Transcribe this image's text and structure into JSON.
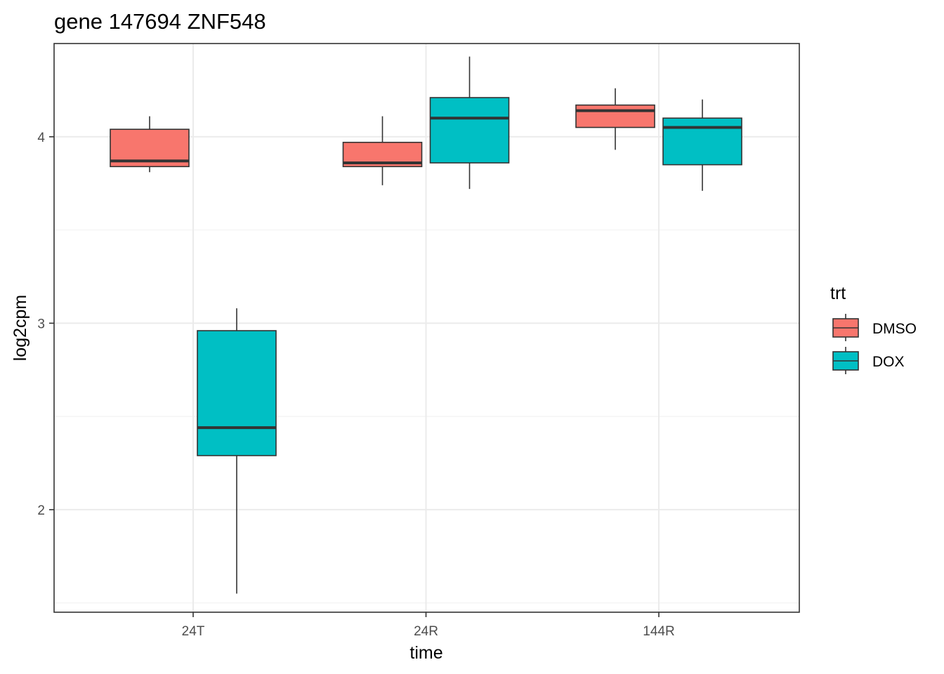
{
  "chart_data": {
    "type": "boxplot",
    "title": "gene 147694 ZNF548",
    "xlabel": "time",
    "ylabel": "log2cpm",
    "categories": [
      "24T",
      "24R",
      "144R"
    ],
    "ylim": [
      1.45,
      4.5
    ],
    "yticks": [
      2,
      3,
      4
    ],
    "grid": true,
    "legend": {
      "title": "trt",
      "position": "right",
      "entries": [
        {
          "name": "DMSO",
          "color": "#F8766D"
        },
        {
          "name": "DOX",
          "color": "#00BFC4"
        }
      ]
    },
    "series": [
      {
        "name": "DMSO",
        "color": "#F8766D",
        "boxes": [
          {
            "category": "24T",
            "min": 3.81,
            "q1": 3.84,
            "median": 3.87,
            "q3": 4.04,
            "max": 4.11
          },
          {
            "category": "24R",
            "min": 3.74,
            "q1": 3.84,
            "median": 3.86,
            "q3": 3.97,
            "max": 4.11
          },
          {
            "category": "144R",
            "min": 3.93,
            "q1": 4.05,
            "median": 4.14,
            "q3": 4.17,
            "max": 4.26
          }
        ]
      },
      {
        "name": "DOX",
        "color": "#00BFC4",
        "boxes": [
          {
            "category": "24T",
            "min": 1.55,
            "q1": 2.29,
            "median": 2.44,
            "q3": 2.96,
            "max": 3.08
          },
          {
            "category": "24R",
            "min": 3.72,
            "q1": 3.86,
            "median": 4.1,
            "q3": 4.21,
            "max": 4.43
          },
          {
            "category": "144R",
            "min": 3.71,
            "q1": 3.85,
            "median": 4.05,
            "q3": 4.1,
            "max": 4.2
          }
        ]
      }
    ]
  }
}
